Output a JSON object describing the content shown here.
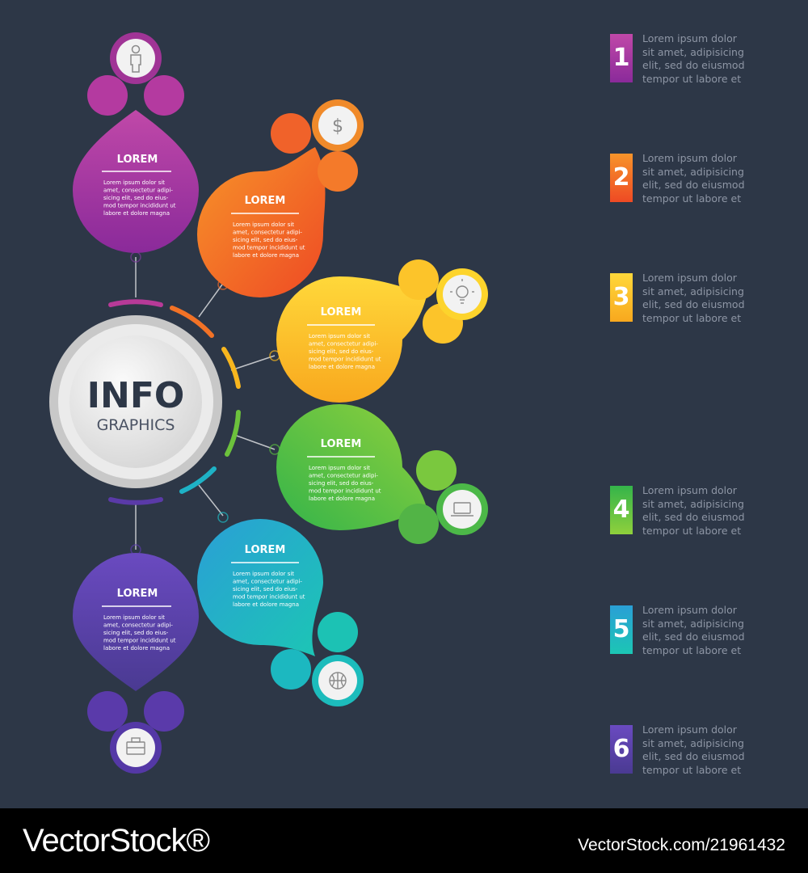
{
  "center": {
    "title": "INFO",
    "subtitle": "GRAPHICS"
  },
  "colors": {
    "background": "#2d3747",
    "step1": [
      "#c048a8",
      "#8a2a9a"
    ],
    "step2": [
      "#f7942a",
      "#ee4a24"
    ],
    "step3": [
      "#ffd83a",
      "#f8a81e"
    ],
    "step4": [
      "#34b44a",
      "#8fd03c"
    ],
    "step5": [
      "#2a9fd6",
      "#1cc6b4"
    ],
    "step6": [
      "#6a4ac0",
      "#4a3a92"
    ]
  },
  "steps": [
    {
      "number": "1",
      "heading": "LOREM",
      "body": "Lorem ipsum dolor sit\namet, consectetur adipi-\nsicing elit, sed do eius-\nmod tempor incididunt ut\nlabore et dolore magna",
      "icon": "person-icon"
    },
    {
      "number": "2",
      "heading": "LOREM",
      "body": "Lorem ipsum dolor sit\namet, consectetur adipi-\nsicing elit, sed do eius-\nmod tempor incididunt ut\nlabore et dolore magna",
      "icon": "dollar-icon"
    },
    {
      "number": "3",
      "heading": "LOREM",
      "body": "Lorem ipsum dolor sit\namet, consectetur adipi-\nsicing elit, sed do eius-\nmod tempor incididunt ut\nlabore et dolore magna",
      "icon": "lightbulb-icon"
    },
    {
      "number": "4",
      "heading": "LOREM",
      "body": "Lorem ipsum dolor sit\namet, consectetur adipi-\nsicing elit, sed do eius-\nmod tempor incididunt ut\nlabore et dolore magna",
      "icon": "laptop-icon"
    },
    {
      "number": "5",
      "heading": "LOREM",
      "body": "Lorem ipsum dolor sit\namet, consectetur adipi-\nsicing elit, sed do eius-\nmod tempor incididunt ut\nlabore et dolore magna",
      "icon": "basketball-icon"
    },
    {
      "number": "6",
      "heading": "LOREM",
      "body": "Lorem ipsum dolor sit\namet, consectetur adipi-\nsicing elit, sed do eius-\nmod tempor incididunt ut\nlabore et dolore magna",
      "icon": "briefcase-icon"
    }
  ],
  "legend": [
    {
      "number": "1",
      "text": "Lorem ipsum dolor\nsit amet, adipisicing\nelit, sed do eiusmod\ntempor ut labore et"
    },
    {
      "number": "2",
      "text": "Lorem ipsum dolor\nsit amet, adipisicing\nelit, sed do eiusmod\ntempor ut labore et"
    },
    {
      "number": "3",
      "text": "Lorem ipsum dolor\nsit amet, adipisicing\nelit, sed do eiusmod\ntempor ut labore et"
    },
    {
      "number": "4",
      "text": "Lorem ipsum dolor\nsit amet, adipisicing\nelit, sed do eiusmod\ntempor ut labore et"
    },
    {
      "number": "5",
      "text": "Lorem ipsum dolor\nsit amet, adipisicing\nelit, sed do eiusmod\ntempor ut labore et"
    },
    {
      "number": "6",
      "text": "Lorem ipsum dolor\nsit amet, adipisicing\nelit, sed do eiusmod\ntempor ut labore et"
    }
  ],
  "watermark": {
    "logo": "VectorStock®",
    "url": "VectorStock.com/21961432"
  }
}
